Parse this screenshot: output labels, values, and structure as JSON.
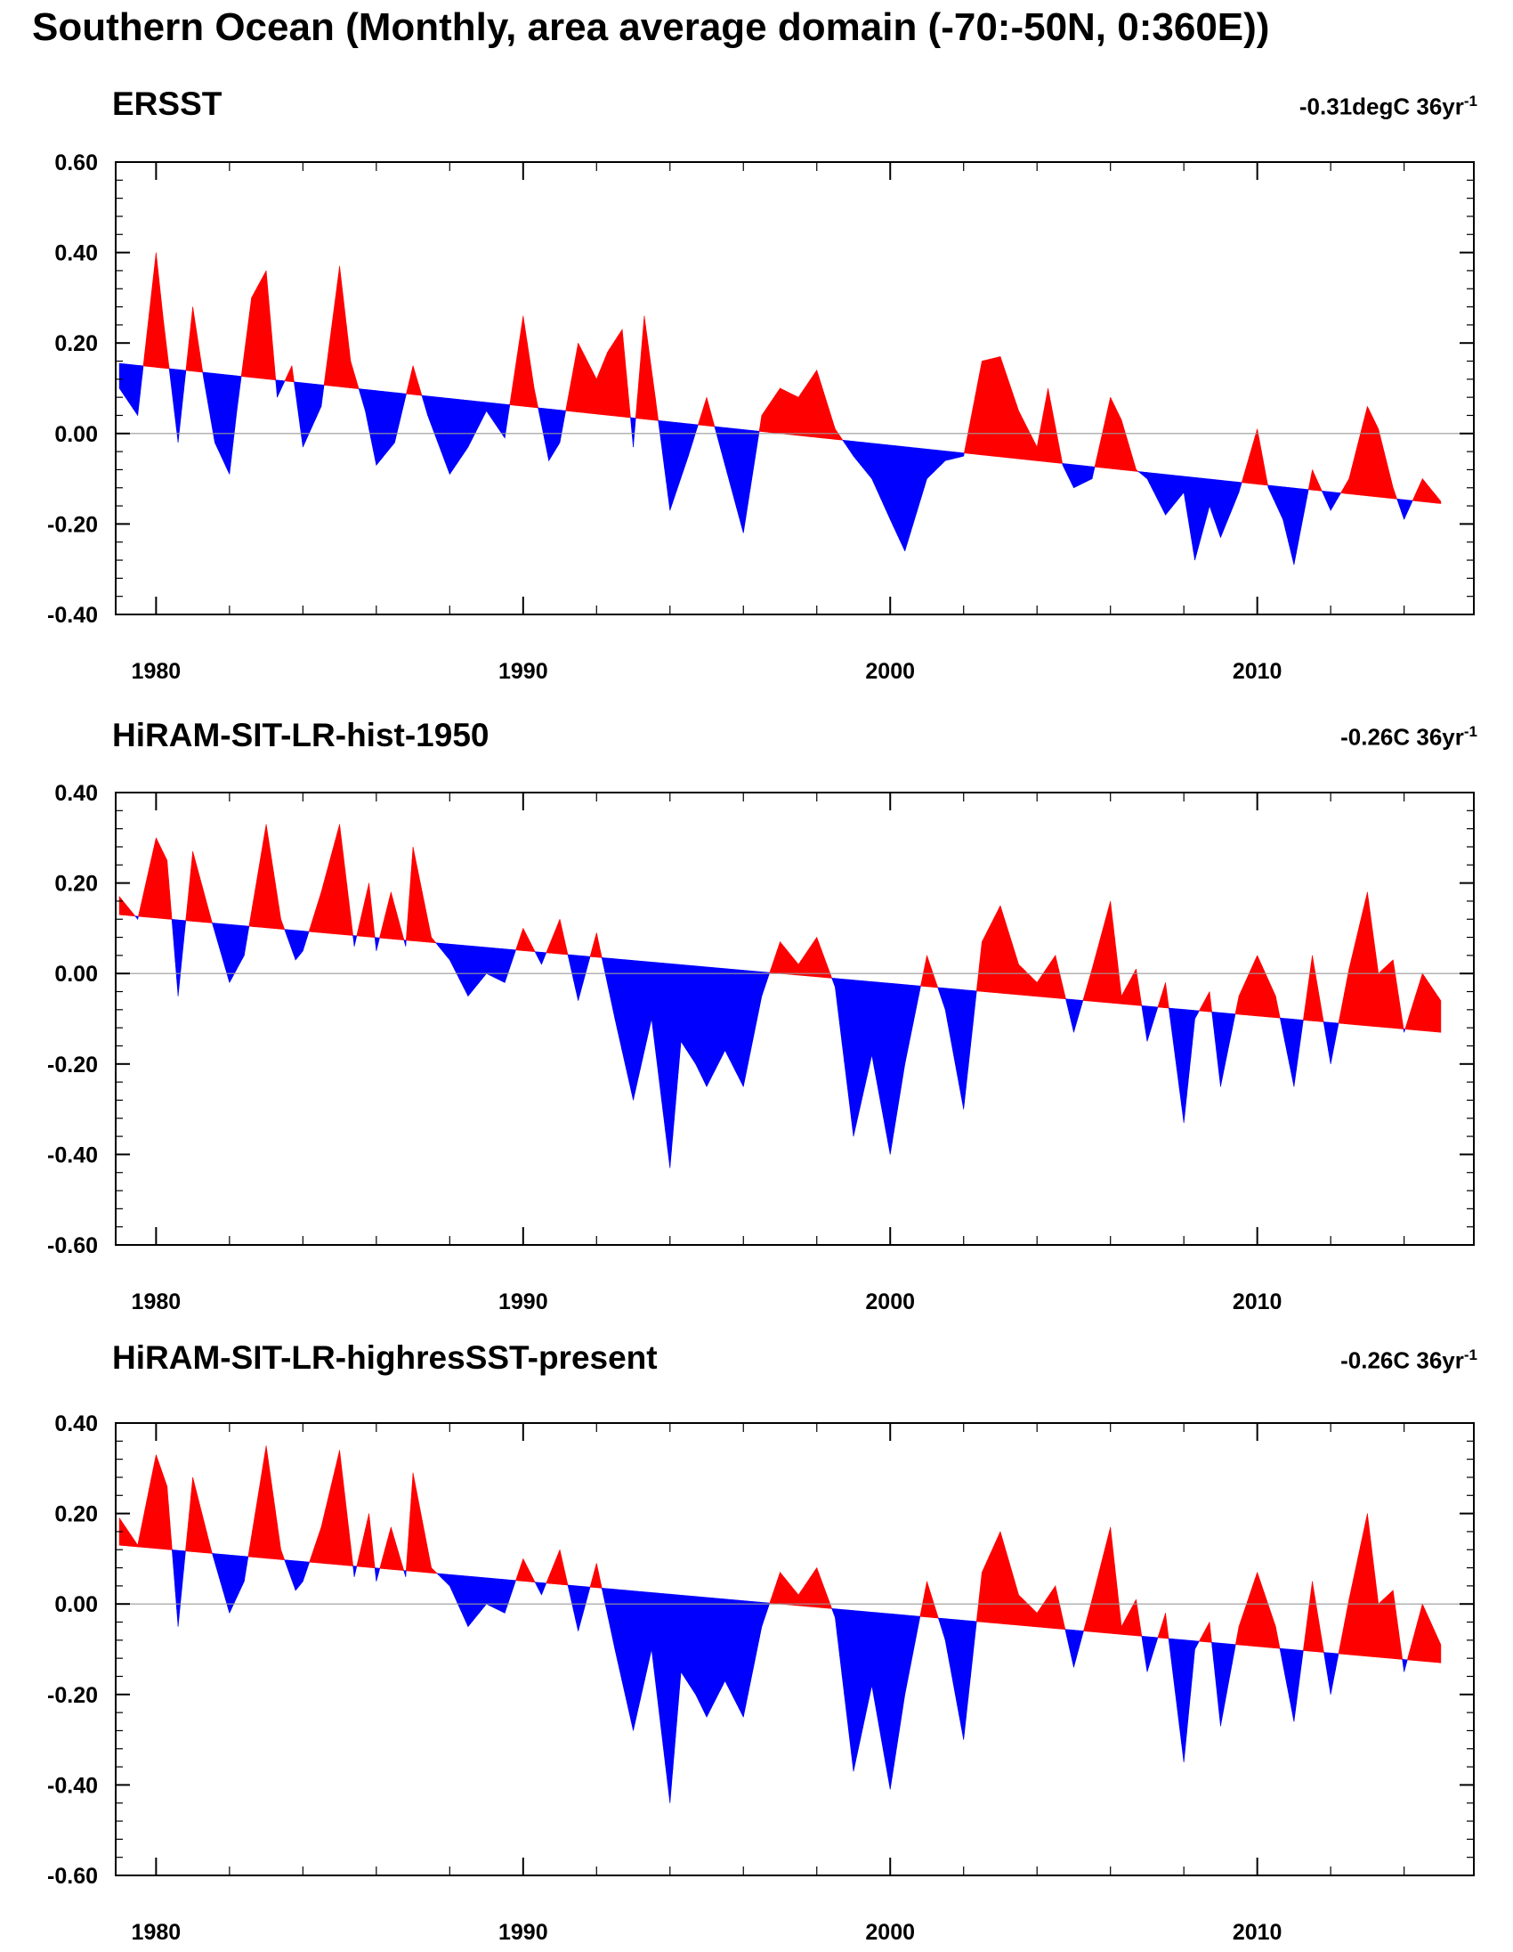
{
  "title": "Southern Ocean (Monthly, area average domain (-70:-50N, 0:360E))",
  "colors": {
    "positive": "#ff0000",
    "negative": "#0000ff",
    "zero_line": "#9a9a9a",
    "axis": "#000000"
  },
  "chart_data": [
    {
      "type": "area",
      "title": "ERSST",
      "trend_value": "-0.31degC 36yr",
      "trend_unit_exponent": "-1",
      "x_ticks": [
        1980,
        1990,
        2000,
        2010
      ],
      "xlim": [
        1978.9,
        2015.9
      ],
      "ylim": [
        -0.4,
        0.6
      ],
      "y_ticks": [
        "-0.40",
        "-0.20",
        "0.00",
        "0.20",
        "0.40",
        "0.60"
      ],
      "y_tick_values": [
        -0.4,
        -0.2,
        0.0,
        0.2,
        0.4,
        0.6
      ],
      "trend_line": {
        "x": [
          1979.0,
          2015.0
        ],
        "y": [
          0.155,
          -0.155
        ]
      },
      "series": [
        {
          "x": [
            1979.0,
            1979.5,
            1980.0,
            1980.2,
            1980.6,
            1981.0,
            1981.3,
            1981.6,
            1982.0,
            1982.2,
            1982.6,
            1983.0,
            1983.3,
            1983.7,
            1984.0,
            1984.5,
            1985.0,
            1985.3,
            1985.7,
            1986.0,
            1986.5,
            1987.0,
            1987.4,
            1988.0,
            1988.5,
            1989.0,
            1989.5,
            1990.0,
            1990.3,
            1990.7,
            1991.0,
            1991.5,
            1992.0,
            1992.3,
            1992.7,
            1993.0,
            1993.3,
            1993.6,
            1994.0,
            1994.5,
            1995.0,
            1995.5,
            1996.0,
            1996.5,
            1997.0,
            1997.5,
            1998.0,
            1998.5,
            1999.0,
            1999.5,
            2000.0,
            2000.4,
            2001.0,
            2001.5,
            2002.0,
            2002.5,
            2003.0,
            2003.5,
            2004.0,
            2004.3,
            2004.7,
            2005.0,
            2005.5,
            2006.0,
            2006.3,
            2006.7,
            2007.0,
            2007.5,
            2008.0,
            2008.3,
            2008.7,
            2009.0,
            2009.5,
            2010.0,
            2010.3,
            2010.7,
            2011.0,
            2011.5,
            2012.0,
            2012.5,
            2013.0,
            2013.3,
            2013.7,
            2014.0,
            2014.5,
            2015.0
          ],
          "y": [
            0.1,
            0.04,
            0.4,
            0.25,
            -0.02,
            0.28,
            0.12,
            -0.02,
            -0.09,
            0.05,
            0.3,
            0.36,
            0.08,
            0.15,
            -0.03,
            0.06,
            0.37,
            0.16,
            0.05,
            -0.07,
            -0.02,
            0.15,
            0.04,
            -0.09,
            -0.03,
            0.05,
            -0.01,
            0.26,
            0.1,
            -0.06,
            -0.02,
            0.2,
            0.12,
            0.18,
            0.23,
            -0.03,
            0.26,
            0.08,
            -0.17,
            -0.05,
            0.08,
            -0.07,
            -0.22,
            0.04,
            0.1,
            0.08,
            0.14,
            0.01,
            -0.05,
            -0.1,
            -0.19,
            -0.26,
            -0.1,
            -0.06,
            -0.05,
            0.16,
            0.17,
            0.05,
            -0.03,
            0.1,
            -0.07,
            -0.12,
            -0.1,
            0.08,
            0.03,
            -0.08,
            -0.1,
            -0.18,
            -0.13,
            -0.28,
            -0.16,
            -0.23,
            -0.13,
            0.01,
            -0.12,
            -0.19,
            -0.29,
            -0.08,
            -0.17,
            -0.1,
            0.06,
            0.01,
            -0.12,
            -0.19,
            -0.1,
            -0.15
          ]
        }
      ]
    },
    {
      "type": "area",
      "title": "HiRAM-SIT-LR-hist-1950",
      "trend_value": "-0.26C 36yr",
      "trend_unit_exponent": "-1",
      "x_ticks": [
        1980,
        1990,
        2000,
        2010
      ],
      "xlim": [
        1978.9,
        2015.9
      ],
      "ylim": [
        -0.6,
        0.4
      ],
      "y_ticks": [
        "-0.60",
        "-0.40",
        "-0.20",
        "0.00",
        "0.20",
        "0.40"
      ],
      "y_tick_values": [
        -0.6,
        -0.4,
        -0.2,
        0.0,
        0.2,
        0.4
      ],
      "trend_line": {
        "x": [
          1979.0,
          2015.0
        ],
        "y": [
          0.13,
          -0.13
        ]
      },
      "series": [
        {
          "x": [
            1979.0,
            1979.5,
            1980.0,
            1980.3,
            1980.6,
            1981.0,
            1981.5,
            1982.0,
            1982.4,
            1983.0,
            1983.4,
            1983.8,
            1984.0,
            1984.5,
            1985.0,
            1985.4,
            1985.8,
            1986.0,
            1986.4,
            1986.8,
            1987.0,
            1987.5,
            1988.0,
            1988.5,
            1989.0,
            1989.5,
            1990.0,
            1990.5,
            1991.0,
            1991.5,
            1992.0,
            1992.5,
            1993.0,
            1993.5,
            1994.0,
            1994.3,
            1994.7,
            1995.0,
            1995.5,
            1996.0,
            1996.5,
            1997.0,
            1997.5,
            1998.0,
            1998.5,
            1999.0,
            1999.5,
            2000.0,
            2000.4,
            2001.0,
            2001.5,
            2002.0,
            2002.5,
            2003.0,
            2003.5,
            2004.0,
            2004.5,
            2005.0,
            2005.5,
            2006.0,
            2006.3,
            2006.7,
            2007.0,
            2007.5,
            2008.0,
            2008.3,
            2008.7,
            2009.0,
            2009.5,
            2010.0,
            2010.5,
            2011.0,
            2011.5,
            2012.0,
            2012.5,
            2013.0,
            2013.3,
            2013.7,
            2014.0,
            2014.5,
            2015.0
          ],
          "y": [
            0.17,
            0.12,
            0.3,
            0.25,
            -0.05,
            0.27,
            0.12,
            -0.02,
            0.04,
            0.33,
            0.12,
            0.03,
            0.05,
            0.18,
            0.33,
            0.06,
            0.2,
            0.05,
            0.18,
            0.06,
            0.28,
            0.08,
            0.03,
            -0.05,
            0.0,
            -0.02,
            0.1,
            0.02,
            0.12,
            -0.06,
            0.09,
            -0.1,
            -0.28,
            -0.1,
            -0.43,
            -0.15,
            -0.2,
            -0.25,
            -0.17,
            -0.25,
            -0.05,
            0.07,
            0.02,
            0.08,
            -0.03,
            -0.36,
            -0.18,
            -0.4,
            -0.2,
            0.04,
            -0.08,
            -0.3,
            0.07,
            0.15,
            0.02,
            -0.02,
            0.04,
            -0.13,
            0.01,
            0.16,
            -0.05,
            0.01,
            -0.15,
            -0.02,
            -0.33,
            -0.1,
            -0.04,
            -0.25,
            -0.05,
            0.04,
            -0.05,
            -0.25,
            0.04,
            -0.2,
            0.01,
            0.18,
            0.0,
            0.03,
            -0.13,
            0.0,
            -0.06
          ]
        }
      ]
    },
    {
      "type": "area",
      "title": "HiRAM-SIT-LR-highresSST-present",
      "trend_value": "-0.26C 36yr",
      "trend_unit_exponent": "-1",
      "x_ticks": [
        1980,
        1990,
        2000,
        2010
      ],
      "xlim": [
        1978.9,
        2015.9
      ],
      "ylim": [
        -0.6,
        0.4
      ],
      "y_ticks": [
        "-0.60",
        "-0.40",
        "-0.20",
        "0.00",
        "0.20",
        "0.40"
      ],
      "y_tick_values": [
        -0.6,
        -0.4,
        -0.2,
        0.0,
        0.2,
        0.4
      ],
      "trend_line": {
        "x": [
          1979.0,
          2015.0
        ],
        "y": [
          0.13,
          -0.13
        ]
      },
      "series": [
        {
          "x": [
            1979.0,
            1979.5,
            1980.0,
            1980.3,
            1980.6,
            1981.0,
            1981.5,
            1982.0,
            1982.4,
            1983.0,
            1983.4,
            1983.8,
            1984.0,
            1984.5,
            1985.0,
            1985.4,
            1985.8,
            1986.0,
            1986.4,
            1986.8,
            1987.0,
            1987.5,
            1988.0,
            1988.5,
            1989.0,
            1989.5,
            1990.0,
            1990.5,
            1991.0,
            1991.5,
            1992.0,
            1992.5,
            1993.0,
            1993.5,
            1994.0,
            1994.3,
            1994.7,
            1995.0,
            1995.5,
            1996.0,
            1996.5,
            1997.0,
            1997.5,
            1998.0,
            1998.5,
            1999.0,
            1999.5,
            2000.0,
            2000.4,
            2001.0,
            2001.5,
            2002.0,
            2002.5,
            2003.0,
            2003.5,
            2004.0,
            2004.5,
            2005.0,
            2005.5,
            2006.0,
            2006.3,
            2006.7,
            2007.0,
            2007.5,
            2008.0,
            2008.3,
            2008.7,
            2009.0,
            2009.5,
            2010.0,
            2010.5,
            2011.0,
            2011.5,
            2012.0,
            2012.5,
            2013.0,
            2013.3,
            2013.7,
            2014.0,
            2014.5,
            2015.0
          ],
          "y": [
            0.19,
            0.13,
            0.33,
            0.26,
            -0.05,
            0.28,
            0.12,
            -0.02,
            0.05,
            0.35,
            0.12,
            0.03,
            0.05,
            0.17,
            0.34,
            0.06,
            0.2,
            0.05,
            0.17,
            0.06,
            0.29,
            0.08,
            0.04,
            -0.05,
            0.0,
            -0.02,
            0.1,
            0.02,
            0.12,
            -0.06,
            0.09,
            -0.1,
            -0.28,
            -0.1,
            -0.44,
            -0.15,
            -0.2,
            -0.25,
            -0.17,
            -0.25,
            -0.05,
            0.07,
            0.02,
            0.08,
            -0.03,
            -0.37,
            -0.18,
            -0.41,
            -0.2,
            0.05,
            -0.08,
            -0.3,
            0.07,
            0.16,
            0.02,
            -0.02,
            0.04,
            -0.14,
            0.01,
            0.17,
            -0.05,
            0.01,
            -0.15,
            -0.02,
            -0.35,
            -0.1,
            -0.04,
            -0.27,
            -0.05,
            0.07,
            -0.05,
            -0.26,
            0.05,
            -0.2,
            0.01,
            0.2,
            0.0,
            0.03,
            -0.15,
            0.0,
            -0.09
          ]
        }
      ]
    }
  ]
}
